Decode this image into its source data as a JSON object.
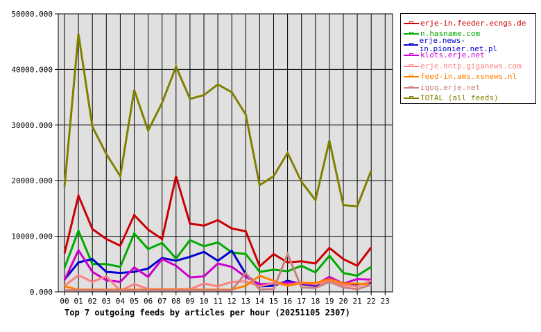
{
  "chart_data": {
    "type": "line",
    "title": "Top 7 outgoing feeds by articles per hour (20251105 2307)",
    "xlabel": "",
    "ylabel": "",
    "ylim": [
      0,
      50000
    ],
    "grid": true,
    "legend_position": "right",
    "x": [
      "00",
      "01",
      "02",
      "03",
      "04",
      "05",
      "06",
      "07",
      "08",
      "09",
      "10",
      "11",
      "12",
      "13",
      "14",
      "15",
      "16",
      "17",
      "18",
      "19",
      "20",
      "21",
      "22",
      "23"
    ],
    "y_ticks": [
      "0.000",
      "10000.000",
      "20000.000",
      "30000.000",
      "40000.000",
      "50000.000"
    ],
    "series": [
      {
        "name": "erje-in.feeder.ecngs.de",
        "color": "#cc0000",
        "values": [
          6900,
          17300,
          11300,
          9500,
          8300,
          13800,
          11200,
          9500,
          20800,
          12300,
          11900,
          12900,
          11400,
          10900,
          4600,
          6800,
          5300,
          5500,
          5100,
          7900,
          5900,
          4700,
          8000
        ]
      },
      {
        "name": "n.hasname.com",
        "color": "#00aa00",
        "values": [
          4300,
          11000,
          5000,
          5000,
          4500,
          10500,
          7700,
          8800,
          6000,
          9300,
          8200,
          8900,
          7100,
          6800,
          3600,
          4000,
          3700,
          4700,
          3500,
          6500,
          3400,
          2900,
          4500
        ]
      },
      {
        "name": "erje.news-in.pionier.net.pl",
        "color": "#0000cc",
        "values": [
          2200,
          5300,
          5900,
          3600,
          3400,
          3600,
          4200,
          6100,
          5600,
          6300,
          7200,
          5600,
          7400,
          3200,
          1000,
          1100,
          2000,
          1400,
          1100,
          2400,
          1200,
          1300,
          1600
        ]
      },
      {
        "name": "klots.erje.net",
        "color": "#cc00cc",
        "values": [
          2100,
          7500,
          3600,
          2100,
          1800,
          4400,
          2700,
          5900,
          4700,
          2600,
          2800,
          5100,
          4500,
          2700,
          1400,
          1500,
          1700,
          1500,
          1300,
          2700,
          1500,
          2300,
          2200
        ]
      },
      {
        "name": "erje.nntp.giganews.com",
        "color": "#ff8080",
        "values": [
          1100,
          3000,
          1800,
          2800,
          200,
          1400,
          500,
          500,
          500,
          500,
          1500,
          1000,
          1800,
          1900,
          1000,
          1600,
          1200,
          1700,
          1400,
          1900,
          1200,
          1000,
          2000
        ]
      },
      {
        "name": "feed-in.ams.xsnews.nl",
        "color": "#ff8000",
        "values": [
          1000,
          400,
          400,
          400,
          400,
          400,
          400,
          400,
          400,
          400,
          400,
          400,
          400,
          1100,
          2900,
          2000,
          1100,
          1600,
          1600,
          2300,
          1500,
          1500,
          1300
        ]
      },
      {
        "name": "iqoq.erje.net",
        "color": "#cc7f7f",
        "values": [
          300,
          300,
          300,
          300,
          300,
          300,
          300,
          300,
          300,
          300,
          300,
          300,
          300,
          3400,
          400,
          500,
          6800,
          800,
          700,
          1800,
          800,
          500,
          1300
        ]
      },
      {
        "name": "TOTAL (all feeds)",
        "color": "#808000",
        "values": [
          18900,
          46400,
          29700,
          24800,
          20800,
          36300,
          29000,
          34000,
          40500,
          34700,
          35400,
          37300,
          35900,
          31900,
          19200,
          20800,
          25000,
          19800,
          16500,
          27200,
          15600,
          15400,
          21800
        ]
      }
    ]
  }
}
